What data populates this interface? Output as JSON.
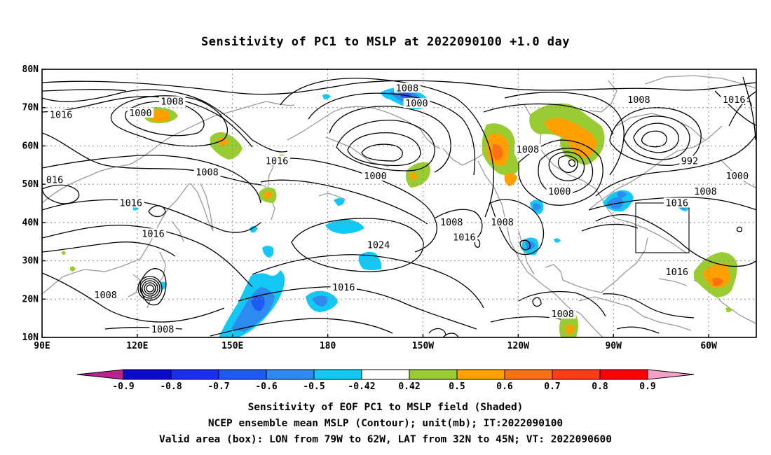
{
  "title": "Sensitivity of PC1 to MSLP at 2022090100 +1.0 day",
  "chart_data": {
    "type": "heatmap",
    "title": "Sensitivity of PC1 to MSLP at 2022090100 +1.0 day",
    "x_ticks": [
      {
        "lon": 90,
        "label": "90E"
      },
      {
        "lon": 120,
        "label": "120E"
      },
      {
        "lon": 150,
        "label": "150E"
      },
      {
        "lon": 180,
        "label": "180"
      },
      {
        "lon": 210,
        "label": "150W"
      },
      {
        "lon": 240,
        "label": "120W"
      },
      {
        "lon": 270,
        "label": "90W"
      },
      {
        "lon": 300,
        "label": "60W"
      }
    ],
    "y_ticks": [
      {
        "lat": 80,
        "label": "80N"
      },
      {
        "lat": 70,
        "label": "70N"
      },
      {
        "lat": 60,
        "label": "60N"
      },
      {
        "lat": 50,
        "label": "50N"
      },
      {
        "lat": 40,
        "label": "40N"
      },
      {
        "lat": 30,
        "label": "30N"
      },
      {
        "lat": 20,
        "label": "20N"
      },
      {
        "lat": 10,
        "label": "10N"
      }
    ],
    "xlim": [
      90,
      315
    ],
    "ylim": [
      10,
      80
    ],
    "grid": true,
    "colorbar": {
      "labels": [
        "-0.9",
        "-0.8",
        "-0.7",
        "-0.6",
        "-0.5",
        "-0.42",
        "0.42",
        "0.5",
        "0.6",
        "0.7",
        "0.8",
        "0.9"
      ],
      "colors": [
        "#b8238e",
        "#0a0acc",
        "#1a2ef0",
        "#1e5af5",
        "#2c8af0",
        "#14c8f5",
        "#ffffff",
        "#99cc33",
        "#ffa000",
        "#ff7010",
        "#ff3c14",
        "#ff0000",
        "#f5a0c8"
      ]
    },
    "contour_labels": [
      {
        "text": "1008",
        "lon": 131,
        "lat": 71.5
      },
      {
        "text": "1000",
        "lon": 121,
        "lat": 68.5
      },
      {
        "text": "1016",
        "lon": 96,
        "lat": 68
      },
      {
        "text": "1008",
        "lon": 142,
        "lat": 53
      },
      {
        "text": "1016",
        "lon": 164,
        "lat": 56
      },
      {
        "text": "016",
        "lon": 94,
        "lat": 51
      },
      {
        "text": "1016",
        "lon": 118,
        "lat": 45
      },
      {
        "text": "1016",
        "lon": 125,
        "lat": 37
      },
      {
        "text": "1008",
        "lon": 110,
        "lat": 21
      },
      {
        "text": "1008",
        "lon": 128,
        "lat": 12
      },
      {
        "text": "1008",
        "lon": 205,
        "lat": 75
      },
      {
        "text": "1000",
        "lon": 208,
        "lat": 71
      },
      {
        "text": "1000",
        "lon": 195,
        "lat": 52
      },
      {
        "text": "1024",
        "lon": 196,
        "lat": 34
      },
      {
        "text": "1016",
        "lon": 185,
        "lat": 23
      },
      {
        "text": "1008",
        "lon": 219,
        "lat": 40
      },
      {
        "text": "1016",
        "lon": 223,
        "lat": 36
      },
      {
        "text": "1008",
        "lon": 235,
        "lat": 40
      },
      {
        "text": "1008",
        "lon": 243,
        "lat": 59
      },
      {
        "text": "1000",
        "lon": 253,
        "lat": 48
      },
      {
        "text": "1008",
        "lon": 278,
        "lat": 72
      },
      {
        "text": "1016",
        "lon": 308,
        "lat": 72
      },
      {
        "text": "992",
        "lon": 294,
        "lat": 56
      },
      {
        "text": "1000",
        "lon": 309,
        "lat": 52
      },
      {
        "text": "1008",
        "lon": 299,
        "lat": 48
      },
      {
        "text": "1016",
        "lon": 290,
        "lat": 45
      },
      {
        "text": "1016",
        "lon": 290,
        "lat": 27
      },
      {
        "text": "1008",
        "lon": 254,
        "lat": 16
      }
    ],
    "valid_area_box": {
      "lon": [
        281,
        298
      ],
      "lat": [
        32,
        45
      ]
    }
  },
  "captions": [
    "Sensitivity of EOF PC1 to MSLP field (Shaded)",
    "NCEP ensemble mean MSLP (Contour); unit(mb); IT:2022090100",
    "Valid area (box): LON from 79W to 62W, LAT from 32N to 45N; VT: 2022090600"
  ]
}
